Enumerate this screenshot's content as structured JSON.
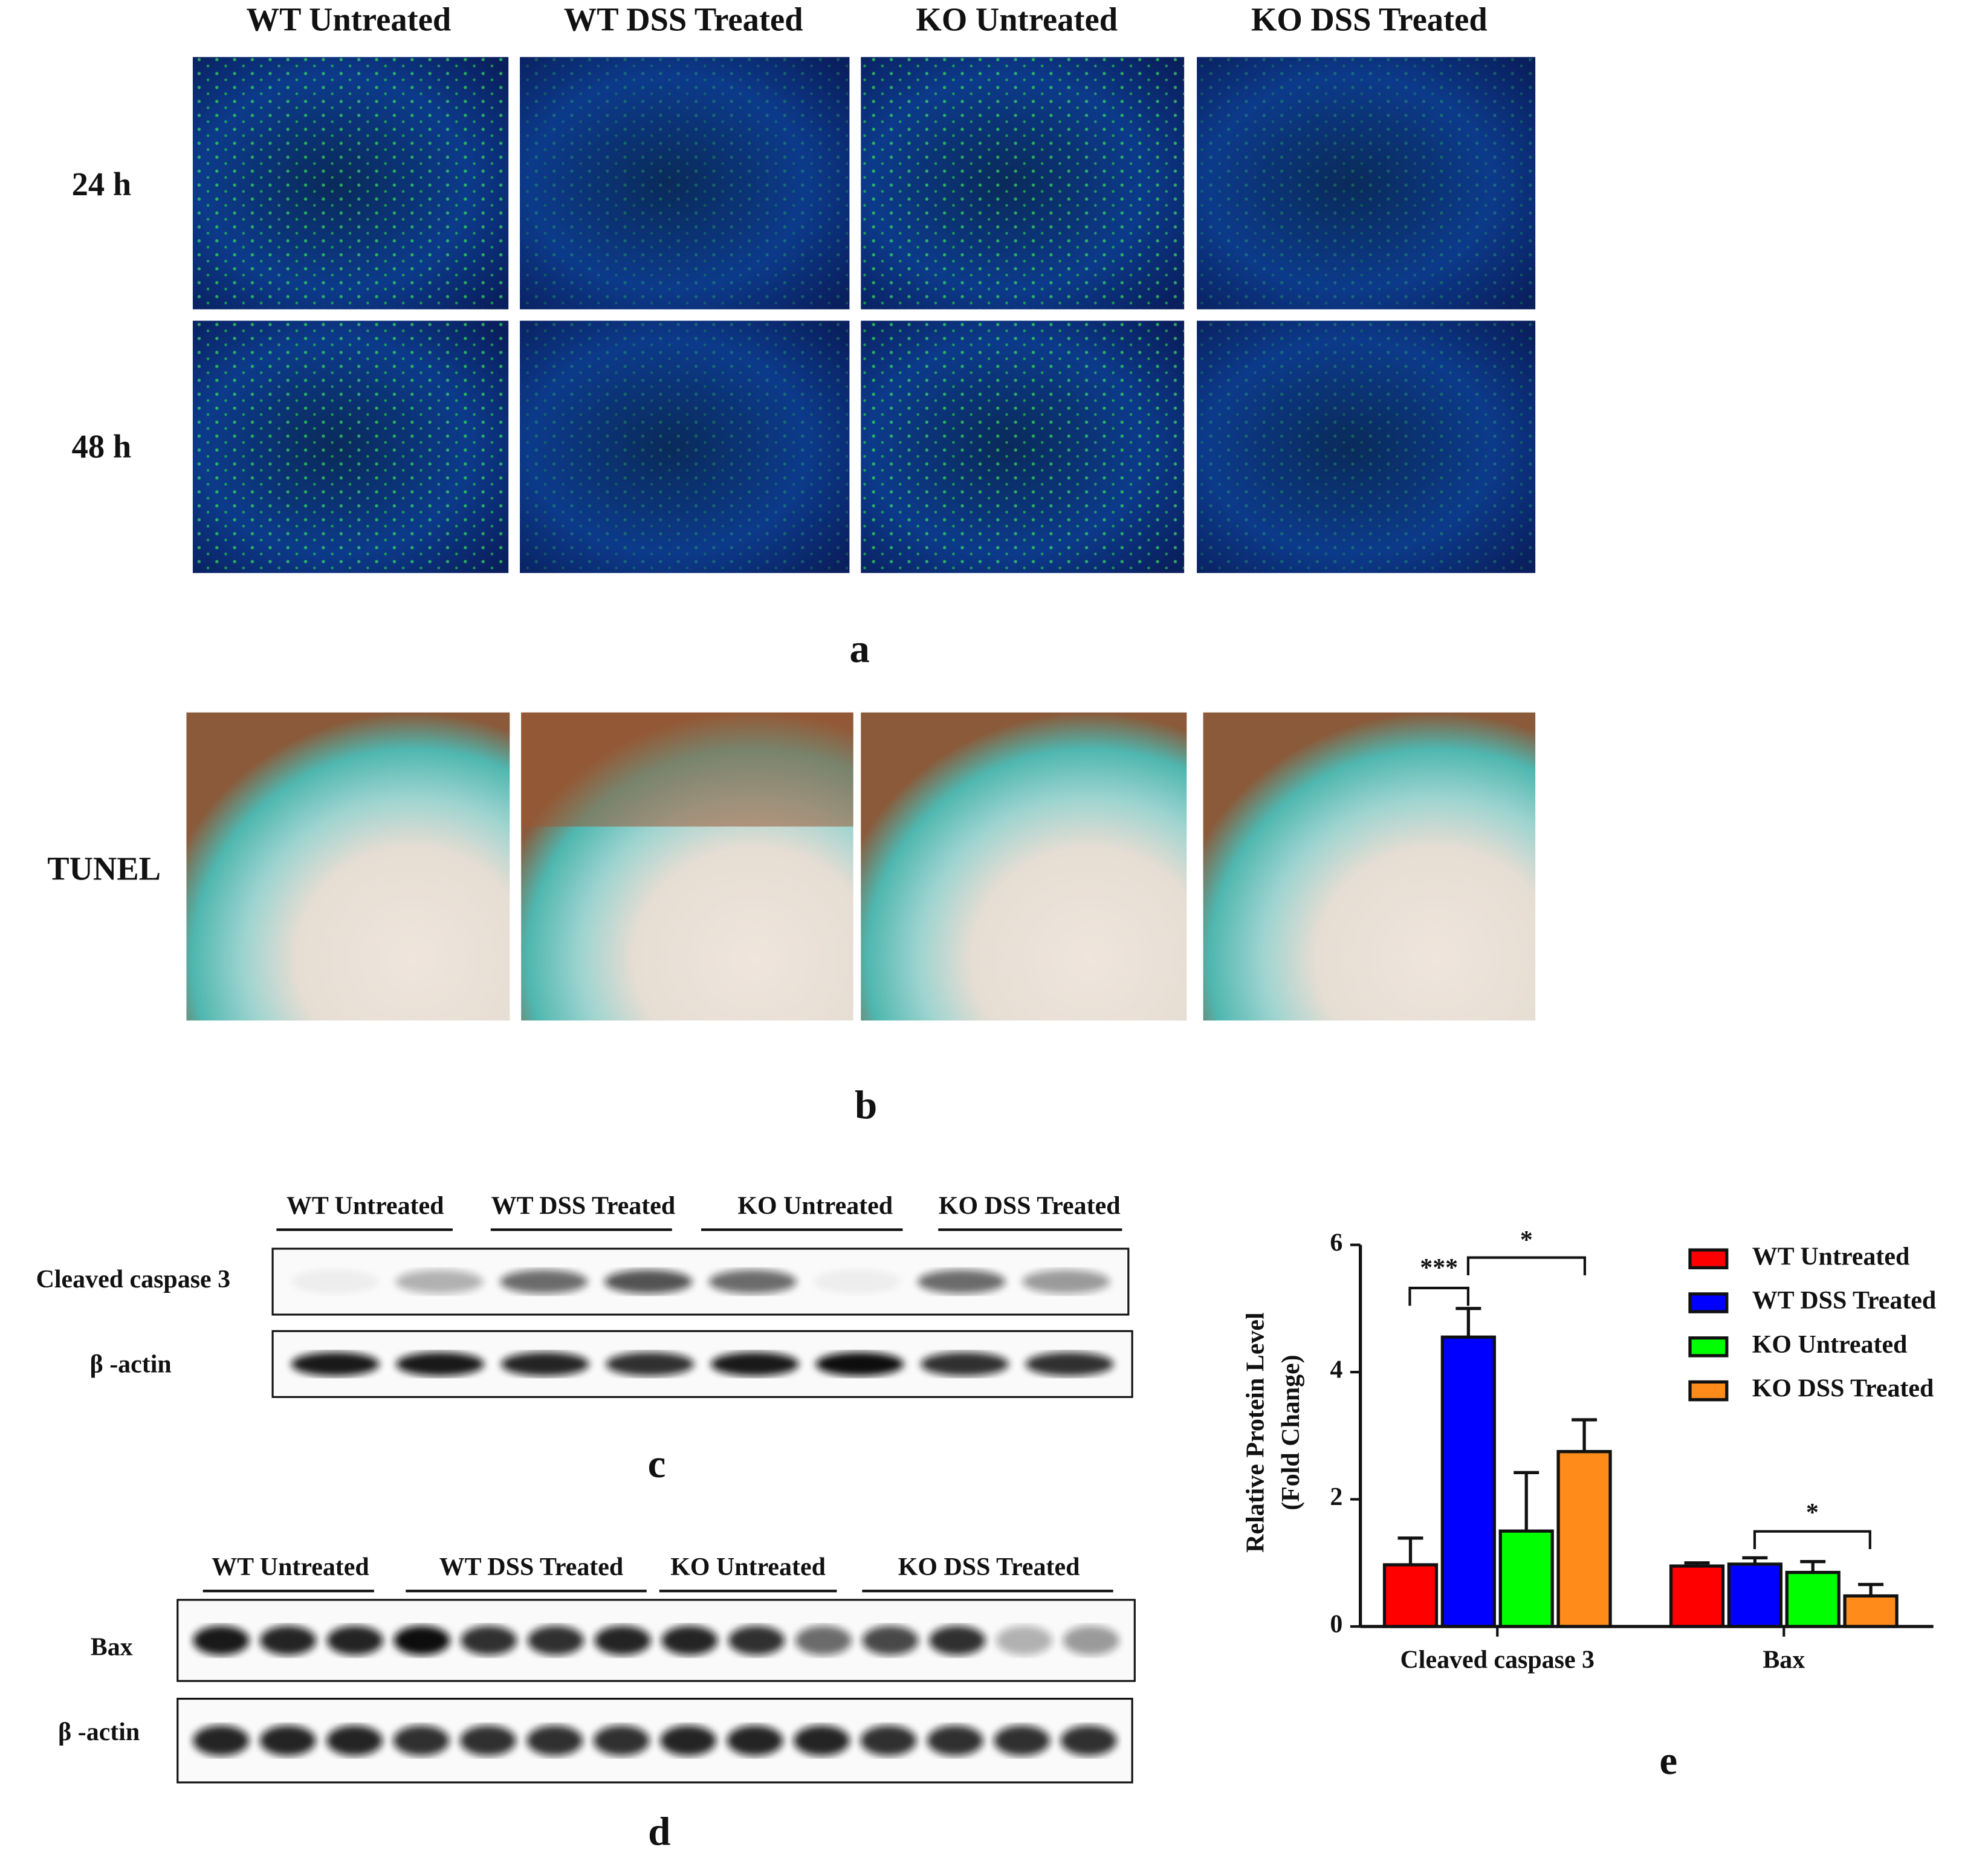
{
  "panel_a": {
    "label": "a",
    "columns": [
      "WT Untreated",
      "WT DSS Treated",
      "KO Untreated",
      "KO DSS Treated"
    ],
    "rows": [
      "24 h",
      "48 h"
    ]
  },
  "panel_b": {
    "label": "b",
    "rows": [
      "TUNEL"
    ]
  },
  "panel_c": {
    "label": "c",
    "lanes": [
      "WT Untreated",
      "WT DSS Treated",
      "KO Untreated",
      "KO DSS Treated"
    ],
    "blots": [
      "Cleaved caspase 3",
      "β -actin"
    ]
  },
  "panel_d": {
    "label": "d",
    "lanes": [
      "WT Untreated",
      "WT DSS Treated",
      "KO Untreated",
      "KO DSS Treated"
    ],
    "blots": [
      "Bax",
      "β -actin"
    ]
  },
  "chart_data": {
    "type": "bar",
    "label": "e",
    "y_label": [
      "Relative Protein Level",
      "(Fold Change)"
    ],
    "categories": [
      "Cleaved caspase 3",
      "Bax"
    ],
    "series": [
      {
        "name": "WT Untreated",
        "color": "#ff0000",
        "values": [
          0.97,
          0.95
        ],
        "errors": [
          0.42,
          0.05
        ]
      },
      {
        "name": "WT DSS Treated",
        "color": "#0000ff",
        "values": [
          4.55,
          0.98
        ],
        "errors": [
          0.45,
          0.1
        ]
      },
      {
        "name": "KO Untreated",
        "color": "#00ff00",
        "values": [
          1.5,
          0.85
        ],
        "errors": [
          0.92,
          0.17
        ]
      },
      {
        "name": "KO DSS Treated",
        "color": "#ff8c1a",
        "values": [
          2.75,
          0.48
        ],
        "errors": [
          0.5,
          0.18
        ]
      }
    ],
    "ylim": [
      0,
      6
    ],
    "yticks": [
      0,
      2,
      4,
      6
    ],
    "annotations": [
      "***",
      "*",
      "*"
    ]
  }
}
